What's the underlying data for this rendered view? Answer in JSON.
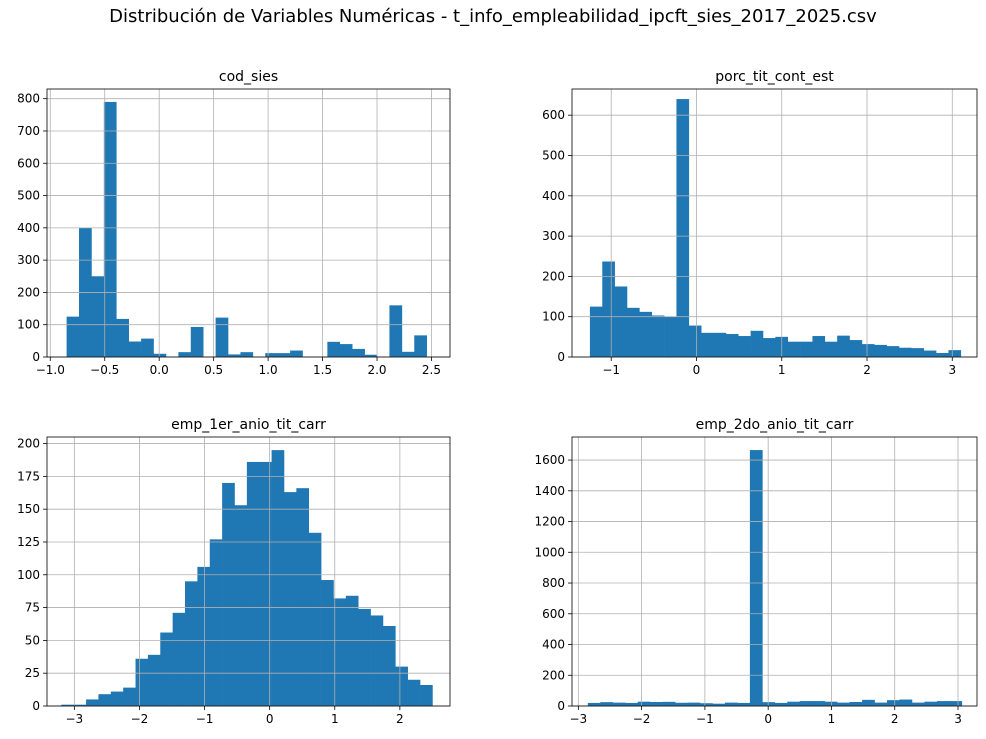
{
  "figure_title": "Distribución de Variables Numéricas - t_info_empleabilidad_ipcft_sies_2017_2025.csv",
  "colors": {
    "bar": "#1f77b4",
    "grid": "#b0b0b0",
    "axis": "#000000"
  },
  "chart_data": [
    {
      "type": "bar",
      "title": "cod_sies",
      "xlabel": "",
      "ylabel": "",
      "grid": true,
      "xlim": [
        -1.03,
        2.67
      ],
      "ylim": [
        0,
        830
      ],
      "xticks": [
        -1.0,
        -0.5,
        0.0,
        0.5,
        1.0,
        1.5,
        2.0,
        2.5
      ],
      "xtick_labels": [
        "−1.0",
        "−0.5",
        "0.0",
        "0.5",
        "1.0",
        "1.5",
        "2.0",
        "2.5"
      ],
      "yticks": [
        0,
        100,
        200,
        300,
        400,
        500,
        600,
        700,
        800
      ],
      "ytick_labels": [
        "0",
        "100",
        "200",
        "300",
        "400",
        "500",
        "600",
        "700",
        "800"
      ],
      "bin_start": -0.85,
      "bin_width": 0.114,
      "values": [
        125,
        400,
        250,
        790,
        118,
        48,
        57,
        10,
        0,
        15,
        93,
        0,
        122,
        8,
        15,
        0,
        12,
        12,
        20,
        0,
        0,
        47,
        40,
        25,
        7,
        0,
        160,
        16,
        67,
        0
      ]
    },
    {
      "type": "bar",
      "title": "porc_tit_cont_est",
      "xlabel": "",
      "ylabel": "",
      "grid": true,
      "xlim": [
        -1.46,
        3.29
      ],
      "ylim": [
        0,
        665
      ],
      "xticks": [
        -1,
        0,
        1,
        2,
        3
      ],
      "xtick_labels": [
        "−1",
        "0",
        "1",
        "2",
        "3"
      ],
      "yticks": [
        0,
        100,
        200,
        300,
        400,
        500,
        600
      ],
      "ytick_labels": [
        "0",
        "100",
        "200",
        "300",
        "400",
        "500",
        "600"
      ],
      "bin_start": -1.25,
      "bin_width": 0.145,
      "values": [
        125,
        237,
        175,
        122,
        112,
        103,
        100,
        640,
        78,
        60,
        60,
        57,
        52,
        65,
        47,
        50,
        38,
        38,
        52,
        38,
        53,
        42,
        32,
        30,
        27,
        23,
        22,
        16,
        10,
        17
      ]
    },
    {
      "type": "bar",
      "title": "emp_1er_anio_tit_carr",
      "xlabel": "",
      "ylabel": "",
      "grid": true,
      "xlim": [
        -3.42,
        2.77
      ],
      "ylim": [
        0,
        205
      ],
      "xticks": [
        -3,
        -2,
        -1,
        0,
        1,
        2
      ],
      "xtick_labels": [
        "−3",
        "−2",
        "−1",
        "0",
        "1",
        "2"
      ],
      "yticks": [
        0,
        25,
        50,
        75,
        100,
        125,
        150,
        175,
        200
      ],
      "ytick_labels": [
        "0",
        "25",
        "50",
        "75",
        "100",
        "125",
        "150",
        "175",
        "200"
      ],
      "bin_start": -3.2,
      "bin_width": 0.19,
      "values": [
        1,
        1,
        5,
        9,
        11,
        14,
        36,
        39,
        56,
        71,
        95,
        106,
        127,
        170,
        153,
        186,
        186,
        195,
        163,
        166,
        132,
        96,
        82,
        84,
        74,
        69,
        61,
        30,
        20,
        16
      ]
    },
    {
      "type": "bar",
      "title": "emp_2do_anio_tit_carr",
      "xlabel": "",
      "ylabel": "",
      "grid": true,
      "xlim": [
        -3.1,
        3.3
      ],
      "ylim": [
        0,
        1750
      ],
      "xticks": [
        -3,
        -2,
        -1,
        0,
        1,
        2,
        3
      ],
      "xtick_labels": [
        "−3",
        "−2",
        "−1",
        "0",
        "1",
        "2",
        "3"
      ],
      "yticks": [
        0,
        200,
        400,
        600,
        800,
        1000,
        1200,
        1400,
        1600
      ],
      "ytick_labels": [
        "0",
        "200",
        "400",
        "600",
        "800",
        "1000",
        "1200",
        "1400",
        "1600"
      ],
      "bin_start": -2.85,
      "bin_width": 0.197,
      "values": [
        20,
        25,
        22,
        20,
        28,
        26,
        27,
        21,
        22,
        18,
        15,
        22,
        20,
        1665,
        25,
        20,
        28,
        32,
        32,
        28,
        22,
        26,
        40,
        22,
        38,
        42,
        22,
        28,
        32,
        32
      ]
    }
  ]
}
